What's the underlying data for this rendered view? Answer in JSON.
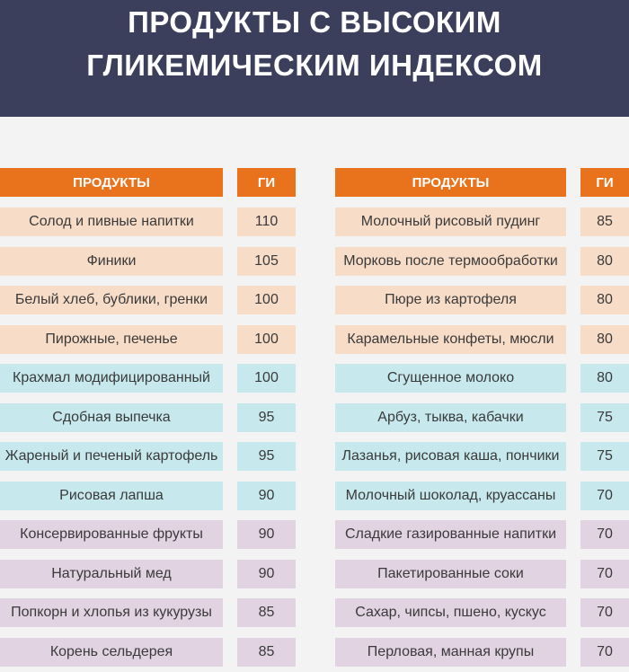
{
  "title": {
    "line1": "ПРОДУКТЫ С ВЫСОКИМ",
    "line2": "ГЛИКЕМИЧЕСКИМ ИНДЕКСОМ"
  },
  "headers": {
    "product": "ПРОДУКТЫ",
    "gi": "ГИ"
  },
  "colors": {
    "header_bg": "#3b3f5c",
    "orange": "#e8731c",
    "peach": "#f7dcc8",
    "cyan": "#c7e9ee",
    "lilac": "#e2d3e2"
  },
  "left_table": [
    {
      "product": "Солод и пивные напитки",
      "gi": "110"
    },
    {
      "product": "Финики",
      "gi": "105"
    },
    {
      "product": "Белый хлеб, бублики, гренки",
      "gi": "100"
    },
    {
      "product": "Пирожные, печенье",
      "gi": "100"
    },
    {
      "product": "Крахмал модифицированный",
      "gi": "100"
    },
    {
      "product": "Сдобная выпечка",
      "gi": "95"
    },
    {
      "product": "Жареный и печеный картофель",
      "gi": "95"
    },
    {
      "product": "Рисовая лапша",
      "gi": "90"
    },
    {
      "product": "Консервированные фрукты",
      "gi": "90"
    },
    {
      "product": "Натуральный мед",
      "gi": "90"
    },
    {
      "product": "Попкорн и хлопья из кукурузы",
      "gi": "85"
    },
    {
      "product": "Корень сельдерея",
      "gi": "85"
    }
  ],
  "right_table": [
    {
      "product": "Молочный рисовый пудинг",
      "gi": "85"
    },
    {
      "product": "Морковь после термообработки",
      "gi": "80"
    },
    {
      "product": "Пюре из картофеля",
      "gi": "80"
    },
    {
      "product": "Карамельные конфеты, мюсли",
      "gi": "80"
    },
    {
      "product": "Сгущенное молоко",
      "gi": "80"
    },
    {
      "product": "Арбуз, тыква, кабачки",
      "gi": "75"
    },
    {
      "product": "Лазанья, рисовая каша, пончики",
      "gi": "75"
    },
    {
      "product": "Молочный шоколад, круассаны",
      "gi": "70"
    },
    {
      "product": "Сладкие газированные напитки",
      "gi": "70"
    },
    {
      "product": "Пакетированные соки",
      "gi": "70"
    },
    {
      "product": "Сахар, чипсы, пшено, кускус",
      "gi": "70"
    },
    {
      "product": "Перловая, манная крупы",
      "gi": "70"
    }
  ]
}
